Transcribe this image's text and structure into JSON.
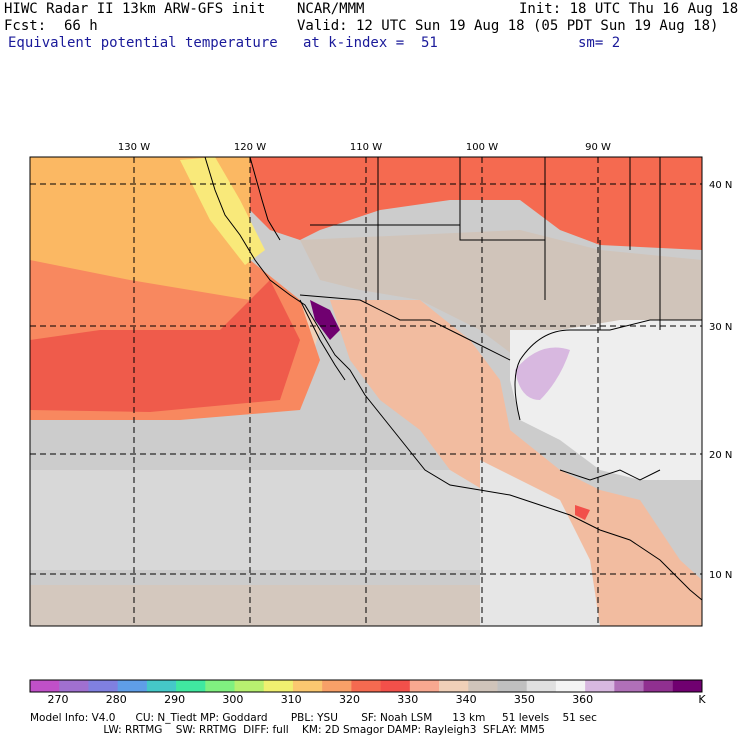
{
  "header": {
    "model": "HIWC Radar II 13km ARW-GFS init",
    "org": "NCAR/MMM",
    "init": "Init: 18 UTC Thu 16 Aug 18",
    "fcst_label": "Fcst:",
    "fcst_value": "66 h",
    "valid": "Valid: 12 UTC Sun 19 Aug 18 (05 PDT Sun 19 Aug 18)",
    "field": "Equivalent potential temperature",
    "level": "at k-index =  51",
    "smooth": "sm= 2"
  },
  "map": {
    "lon_labels": [
      "130 W",
      "120 W",
      "110 W",
      "100 W",
      "90 W"
    ],
    "lat_labels": [
      "40 N",
      "30 N",
      "20 N",
      "10 N"
    ],
    "ocean_colors": {
      "warm": "#ef5b4b",
      "mid": "#f8885f",
      "cool": "#fbb863",
      "yellow": "#f9e97a",
      "gray": "#cccccc"
    }
  },
  "colorbar": {
    "labels": [
      "270",
      "280",
      "290",
      "300",
      "310",
      "320",
      "330",
      "340",
      "350",
      "360"
    ],
    "unit": "K",
    "colors": [
      "#c050c8",
      "#a070d0",
      "#8080e0",
      "#5f9ee8",
      "#45c8c8",
      "#40e8a0",
      "#80f080",
      "#b8f070",
      "#f0f070",
      "#fbc870",
      "#f8a068",
      "#f56a50",
      "#f2504a",
      "#f8a890",
      "#f0d0b8",
      "#d0c4ba",
      "#c0c0c0",
      "#e0e0e0",
      "#f4f4f4",
      "#d8b8e0",
      "#b070b8",
      "#903090",
      "#700070"
    ]
  },
  "footer": {
    "line1": "Model Info: V4.0      CU: N_Tiedt MP: Goddard       PBL: YSU       SF: Noah LSM      13 km     51 levels    51 sec",
    "line2": "                      LW: RRTMG    SW: RRTMG  DIFF: full    KM: 2D Smagor DAMP: Rayleigh3  SFLAY: MM5"
  }
}
